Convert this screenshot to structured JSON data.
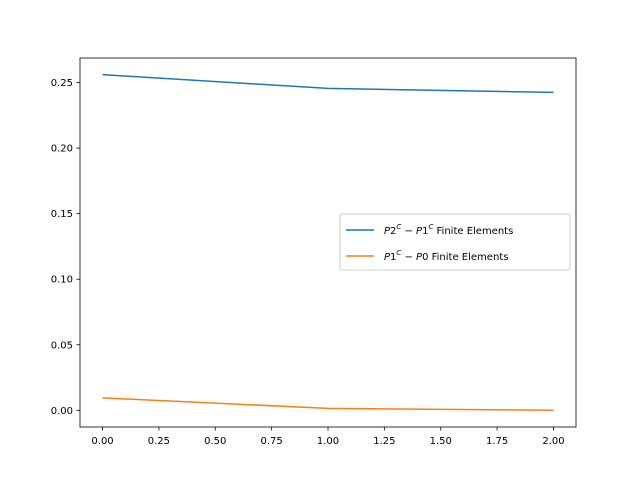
{
  "chart_data": {
    "type": "line",
    "x": [
      0,
      1,
      2
    ],
    "series": [
      {
        "name": "P2^C − P1^C Finite Elements",
        "values": [
          0.256,
          0.2455,
          0.2425
        ],
        "color": "#1f77b4"
      },
      {
        "name": "P1^C − P0 Finite Elements",
        "values": [
          0.0095,
          0.0015,
          0.0001
        ],
        "color": "#ff7f0e"
      }
    ],
    "xlim": [
      -0.1,
      2.1
    ],
    "ylim": [
      -0.0127,
      0.2687
    ],
    "x_ticks": [
      "0.00",
      "0.25",
      "0.50",
      "0.75",
      "1.00",
      "1.25",
      "1.50",
      "1.75",
      "2.00"
    ],
    "y_ticks": [
      "0.00",
      "0.05",
      "0.10",
      "0.15",
      "0.20",
      "0.25"
    ],
    "title": "",
    "xlabel": "",
    "ylabel": "",
    "grid": false,
    "legend_position": "center-right"
  },
  "legend": {
    "series0": {
      "a": "P",
      "b": "2",
      "c": "C",
      "d": " − ",
      "e": "P",
      "f": "1",
      "g": "C",
      "h": " Finite Elements"
    },
    "series1": {
      "a": "P",
      "b": "1",
      "c": "C",
      "d": " − ",
      "e": "P",
      "f": "0",
      "g": "",
      "h": " Finite Elements"
    }
  }
}
